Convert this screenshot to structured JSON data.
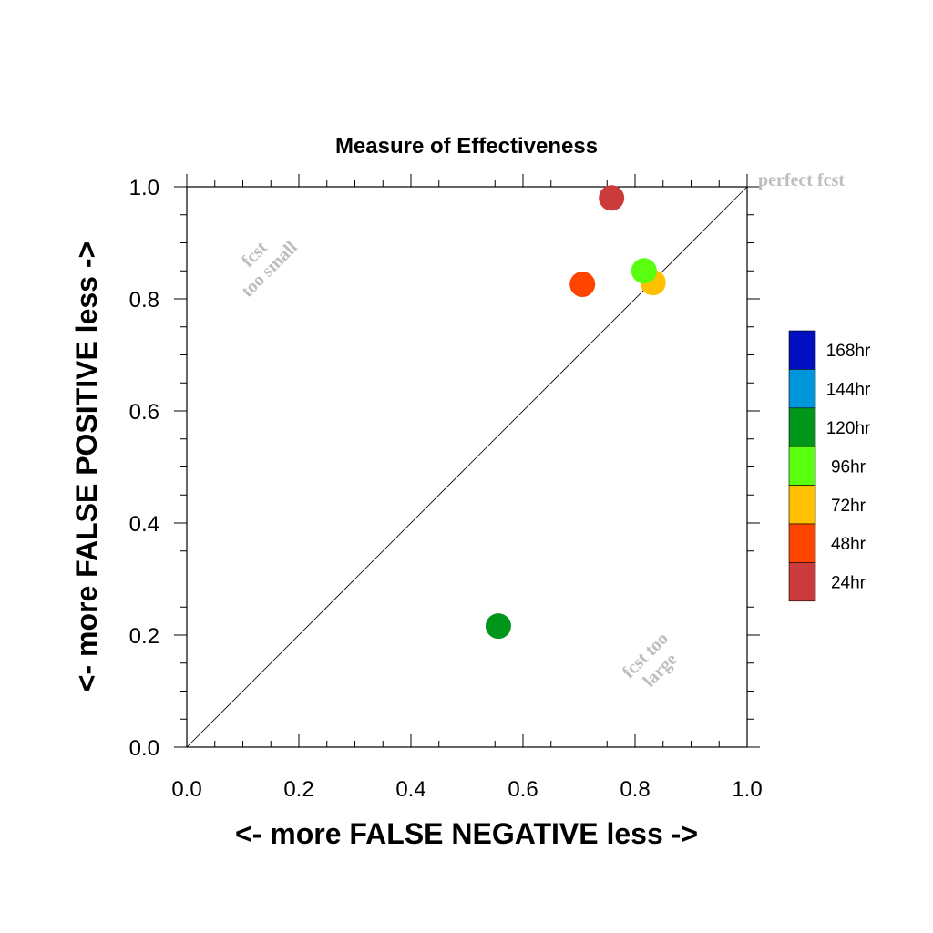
{
  "chart_data": {
    "type": "scatter",
    "title": "Measure of Effectiveness",
    "xlabel": "<- more   FALSE NEGATIVE   less ->",
    "ylabel": "<- more   FALSE POSITIVE   less ->",
    "xlim": [
      0.0,
      1.0
    ],
    "ylim": [
      0.0,
      1.0
    ],
    "x_ticks": [
      "0.0",
      "0.2",
      "0.4",
      "0.6",
      "0.8",
      "1.0"
    ],
    "y_ticks": [
      "0.0",
      "0.2",
      "0.4",
      "0.6",
      "0.8",
      "1.0"
    ],
    "grid": false,
    "reference_line": {
      "from": [
        0,
        0
      ],
      "to": [
        1,
        1
      ]
    },
    "annotations": {
      "perfect": "perfect fcst",
      "small_line1": "fcst",
      "small_line2": "too small",
      "large_line1": "fcst too",
      "large_line2": "large"
    },
    "points": [
      {
        "label": "24hr",
        "x": 0.758,
        "y": 0.98,
        "color": "#cc3b3b"
      },
      {
        "label": "48hr",
        "x": 0.706,
        "y": 0.826,
        "color": "#ff4400"
      },
      {
        "label": "72hr",
        "x": 0.832,
        "y": 0.829,
        "color": "#ffc000"
      },
      {
        "label": "96hr",
        "x": 0.816,
        "y": 0.85,
        "color": "#5aff10"
      },
      {
        "label": "120hr",
        "x": 0.556,
        "y": 0.216,
        "color": "#00961a"
      }
    ],
    "legend": {
      "position": "right",
      "entries": [
        {
          "label": "168hr",
          "color": "#0010c0"
        },
        {
          "label": "144hr",
          "color": "#0096dc"
        },
        {
          "label": "120hr",
          "color": "#00961a"
        },
        {
          "label": "96hr",
          "color": "#5aff10"
        },
        {
          "label": "72hr",
          "color": "#ffc000"
        },
        {
          "label": "48hr",
          "color": "#ff4400"
        },
        {
          "label": "24hr",
          "color": "#cc3b3b"
        }
      ]
    }
  }
}
